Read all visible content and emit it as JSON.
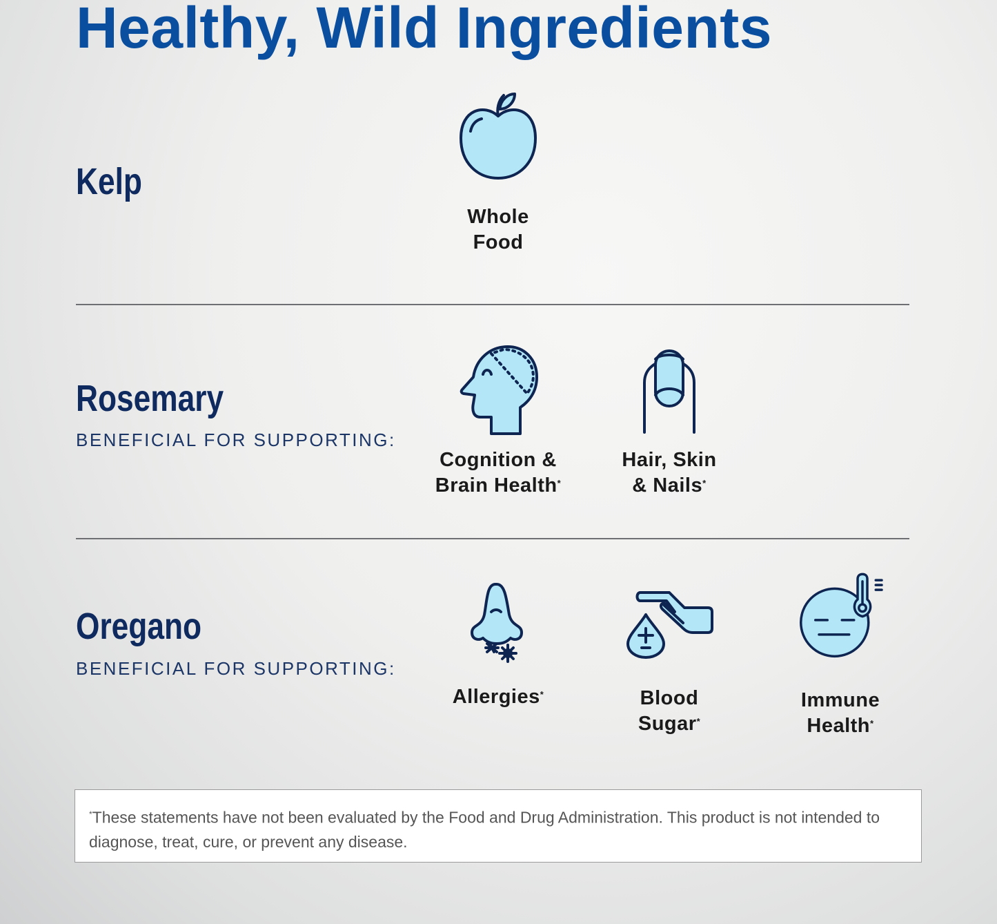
{
  "title": "Healthy, Wild Ingredients",
  "colors": {
    "title": "#0a4ea0",
    "ingredient": "#0e2a5e",
    "icon_fill": "#b3e6f7",
    "icon_stroke": "#0d2550"
  },
  "sections": [
    {
      "name": "Kelp",
      "subtitle": "",
      "benefits": [
        {
          "line1": "Whole",
          "line2": "Food",
          "asterisk": "",
          "icon": "apple-icon"
        }
      ]
    },
    {
      "name": "Rosemary",
      "subtitle": "BENEFICIAL FOR SUPPORTING:",
      "benefits": [
        {
          "line1": "Cognition &",
          "line2": "Brain Health",
          "asterisk": "*",
          "icon": "head-brain-icon"
        },
        {
          "line1": "Hair, Skin",
          "line2": "& Nails",
          "asterisk": "*",
          "icon": "fingernail-icon"
        }
      ]
    },
    {
      "name": "Oregano",
      "subtitle": "BENEFICIAL FOR SUPPORTING:",
      "benefits": [
        {
          "line1": "Allergies",
          "line2": "",
          "asterisk": "*",
          "icon": "nose-allergen-icon"
        },
        {
          "line1": "Blood",
          "line2": "Sugar",
          "asterisk": "*",
          "icon": "hand-blood-drop-icon"
        },
        {
          "line1": "Immune",
          "line2": "Health",
          "asterisk": "*",
          "icon": "face-thermometer-icon"
        }
      ]
    }
  ],
  "disclaimer": {
    "asterisk": "*",
    "text": "These statements have not been evaluated by the Food and Drug Administration. This product is not intended to diagnose, treat, cure, or prevent any disease."
  }
}
